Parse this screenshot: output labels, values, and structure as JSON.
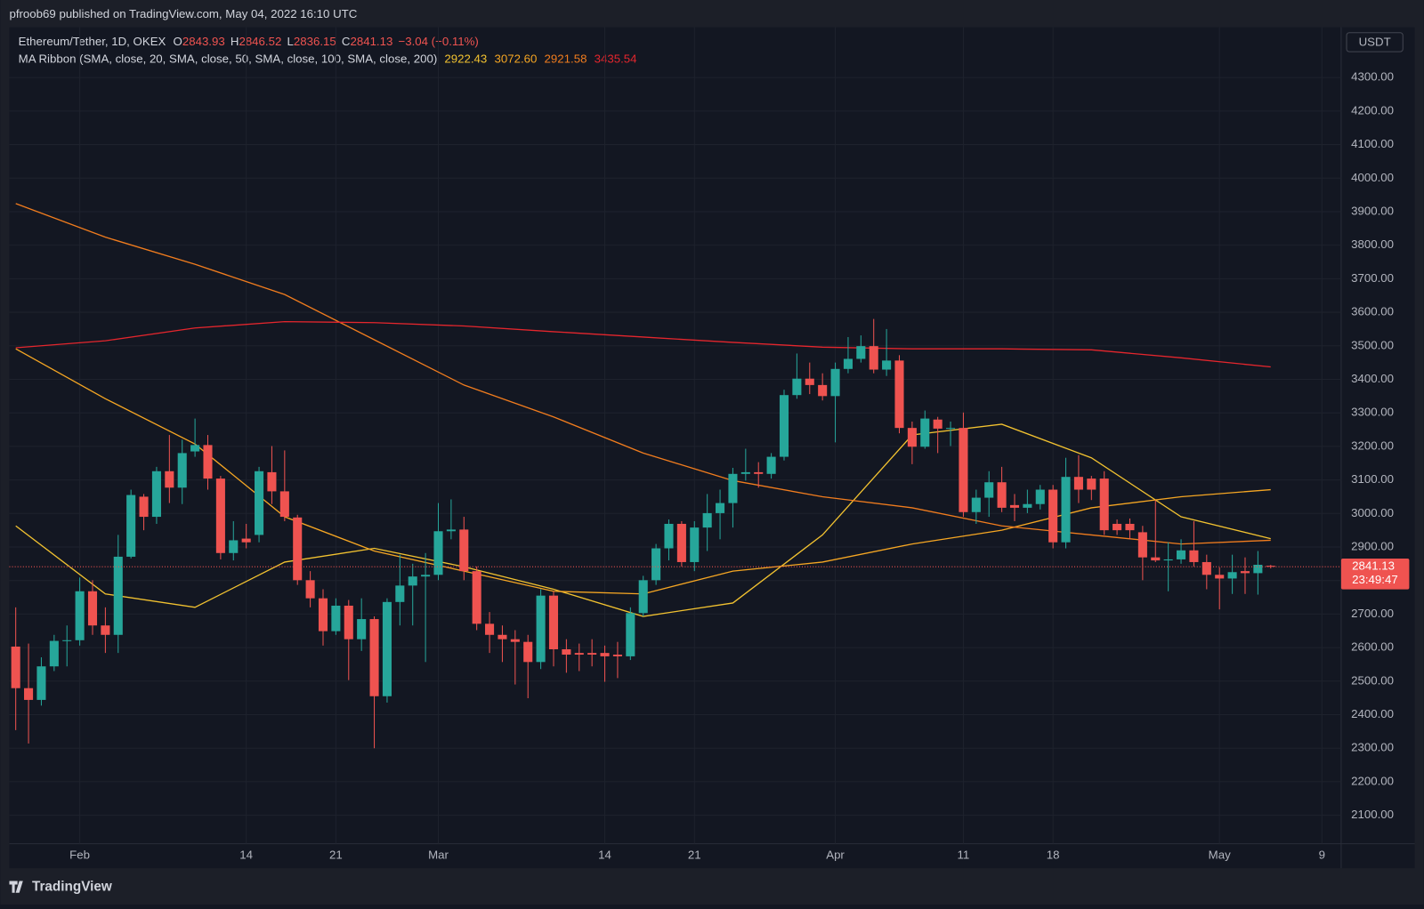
{
  "header": {
    "publisher": "pfroob69 published on TradingView.com, May 04, 2022 16:10 UTC",
    "symbol": "Ethereum/Tether, 1D, OKEX",
    "ohlc_labels": [
      "O",
      "H",
      "L",
      "C"
    ],
    "change": "−3.04 (−0.11%)",
    "indicator": "MA Ribbon (SMA, close, 20, SMA, close, 50, SMA, close, 100, SMA, close, 200)",
    "currency": "USDT",
    "countdown": "23:49:47"
  },
  "footer": {
    "brand": "TradingView"
  },
  "chart_data": {
    "type": "candlestick",
    "up_color": "#26a69a",
    "down_color": "#ef5350",
    "grid": true,
    "xlim": [
      -0.5,
      103.5
    ],
    "ylim": [
      2015,
      4450
    ],
    "xticks": [
      {
        "value": 5,
        "label": "Feb"
      },
      {
        "value": 18,
        "label": "14"
      },
      {
        "value": 25,
        "label": "21"
      },
      {
        "value": 33,
        "label": "Mar"
      },
      {
        "value": 46,
        "label": "14"
      },
      {
        "value": 53,
        "label": "21"
      },
      {
        "value": 64,
        "label": "Apr"
      },
      {
        "value": 74,
        "label": "11"
      },
      {
        "value": 81,
        "label": "18"
      },
      {
        "value": 94,
        "label": "May"
      },
      {
        "value": 102,
        "label": "9"
      }
    ],
    "yticks": [
      {
        "value": 2100,
        "label": "2100.00"
      },
      {
        "value": 2200,
        "label": "2200.00"
      },
      {
        "value": 2300,
        "label": "2300.00"
      },
      {
        "value": 2400,
        "label": "2400.00"
      },
      {
        "value": 2500,
        "label": "2500.00"
      },
      {
        "value": 2600,
        "label": "2600.00"
      },
      {
        "value": 2700,
        "label": "2700.00"
      },
      {
        "value": 2800,
        "label": "2800.00"
      },
      {
        "value": 2900,
        "label": "2900.00"
      },
      {
        "value": 3000,
        "label": "3000.00"
      },
      {
        "value": 3100,
        "label": "3100.00"
      },
      {
        "value": 3200,
        "label": "3200.00"
      },
      {
        "value": 3300,
        "label": "3300.00"
      },
      {
        "value": 3400,
        "label": "3400.00"
      },
      {
        "value": 3500,
        "label": "3500.00"
      },
      {
        "value": 3600,
        "label": "3600.00"
      },
      {
        "value": 3700,
        "label": "3700.00"
      },
      {
        "value": 3800,
        "label": "3800.00"
      },
      {
        "value": 3900,
        "label": "3900.00"
      },
      {
        "value": 4000,
        "label": "4000.00"
      },
      {
        "value": 4100,
        "label": "4100.00"
      },
      {
        "value": 4200,
        "label": "4200.00"
      },
      {
        "value": 4300,
        "label": "4300.00"
      }
    ],
    "open": [
      2603,
      2479,
      2444,
      2544,
      2620,
      2622,
      2768,
      2666,
      2638,
      2871,
      3050,
      2990,
      3126,
      3077,
      3185,
      3204,
      3104,
      2882,
      2925,
      2936,
      3123,
      3066,
      2988,
      2801,
      2747,
      2649,
      2725,
      2625,
      2685,
      2455,
      2736,
      2785,
      2812,
      2817,
      2947,
      2952,
      2828,
      2671,
      2638,
      2625,
      2617,
      2557,
      2755,
      2595,
      2584,
      2584,
      2584,
      2579,
      2574,
      2703,
      2801,
      2896,
      2969,
      2855,
      2958,
      3001,
      3031,
      3118,
      3123,
      3118,
      3169,
      3353,
      3402,
      3383,
      3350,
      3431,
      3461,
      3499,
      3429,
      3456,
      3255,
      3199,
      3280,
      3253,
      3255,
      3004,
      3047,
      3093,
      3025,
      3017,
      3028,
      3071,
      2914,
      3109,
      3104,
      3104,
      2969,
      2969,
      2944,
      2869,
      2860,
      2863,
      2890,
      2855,
      2817,
      2806,
      2828,
      2822,
      2843.93
    ],
    "high": [
      2720,
      2612,
      2571,
      2638,
      2666,
      2809,
      2801,
      2720,
      2936,
      3071,
      3058,
      3139,
      3234,
      3220,
      3283,
      3234,
      3112,
      2977,
      2969,
      3139,
      3201,
      3188,
      2996,
      2828,
      2774,
      2747,
      2742,
      2747,
      2693,
      2747,
      2877,
      2850,
      2882,
      3031,
      3042,
      2990,
      2842,
      2706,
      2666,
      2652,
      2638,
      2774,
      2768,
      2625,
      2612,
      2625,
      2606,
      2617,
      2720,
      2814,
      2909,
      2982,
      2977,
      2977,
      3058,
      3071,
      3136,
      3193,
      3153,
      3180,
      3369,
      3477,
      3450,
      3418,
      3450,
      3526,
      3531,
      3580,
      3550,
      3472,
      3274,
      3307,
      3288,
      3274,
      3301,
      3071,
      3126,
      3139,
      3058,
      3071,
      3085,
      3085,
      3166,
      3174,
      3112,
      3126,
      2982,
      2985,
      2963,
      3039,
      2914,
      2923,
      2977,
      2877,
      2839,
      2877,
      2869,
      2888,
      2846.52
    ],
    "low": [
      2354,
      2314,
      2427,
      2530,
      2544,
      2606,
      2638,
      2584,
      2584,
      2866,
      2950,
      2969,
      3031,
      3028,
      3169,
      3071,
      2863,
      2860,
      2896,
      2914,
      3028,
      2977,
      2787,
      2720,
      2606,
      2638,
      2503,
      2590,
      2300,
      2436,
      2666,
      2666,
      2557,
      2801,
      2923,
      2801,
      2652,
      2584,
      2557,
      2490,
      2449,
      2536,
      2544,
      2525,
      2530,
      2544,
      2498,
      2509,
      2563,
      2693,
      2787,
      2860,
      2842,
      2828,
      2888,
      2923,
      2958,
      3098,
      3077,
      3104,
      3158,
      3342,
      3356,
      3337,
      3212,
      3418,
      3450,
      3418,
      3410,
      3239,
      3147,
      3193,
      3180,
      3201,
      2990,
      2969,
      2990,
      3004,
      2977,
      3001,
      3012,
      2896,
      2896,
      3031,
      3040,
      2936,
      2936,
      2923,
      2801,
      2855,
      2768,
      2850,
      2842,
      2774,
      2714,
      2760,
      2760,
      2758,
      2836.15
    ],
    "close": [
      2479,
      2444,
      2544,
      2620,
      2622,
      2768,
      2666,
      2638,
      2871,
      3055,
      2990,
      3126,
      3077,
      3180,
      3204,
      3104,
      2882,
      2920,
      2914,
      3126,
      3066,
      2990,
      2801,
      2747,
      2649,
      2725,
      2625,
      2685,
      2455,
      2736,
      2785,
      2812,
      2817,
      2947,
      2952,
      2828,
      2671,
      2638,
      2625,
      2617,
      2557,
      2755,
      2595,
      2579,
      2579,
      2579,
      2574,
      2574,
      2703,
      2801,
      2896,
      2969,
      2855,
      2958,
      3001,
      3031,
      3118,
      3123,
      3118,
      3169,
      3353,
      3402,
      3383,
      3350,
      3431,
      3461,
      3499,
      3429,
      3456,
      3255,
      3199,
      3283,
      3253,
      3255,
      3004,
      3047,
      3093,
      3017,
      3017,
      3028,
      3071,
      2914,
      3109,
      3071,
      3071,
      2950,
      2950,
      2950,
      2869,
      2860,
      2863,
      2890,
      2855,
      2817,
      2806,
      2825,
      2822,
      2847,
      2841.13
    ],
    "ma_x": [
      0,
      7,
      14,
      21,
      28,
      35,
      42,
      49,
      56,
      63,
      70,
      77,
      84,
      91,
      98
    ],
    "series": [
      {
        "color": "#f2c230",
        "legend_value": "2922.43",
        "values": [
          2963,
          2760,
          2720,
          2855,
          2896,
          2841,
          2774,
          2693,
          2733,
          2936,
          3234,
          3266,
          3166,
          2990,
          2925
        ]
      },
      {
        "color": "#f5a623",
        "legend_value": "3072.60",
        "values": [
          3491,
          3342,
          3207,
          2990,
          2888,
          2828,
          2768,
          2760,
          2828,
          2855,
          2909,
          2950,
          3017,
          3050,
          3071
        ]
      },
      {
        "color": "#f07c1e",
        "legend_value": "2921.58",
        "values": [
          3924,
          3824,
          3743,
          3653,
          3518,
          3383,
          3288,
          3180,
          3098,
          3050,
          3017,
          2963,
          2936,
          2909,
          2920
        ]
      },
      {
        "color": "#e4262d",
        "legend_value": "3435.54",
        "values": [
          3494,
          3515,
          3553,
          3572,
          3569,
          3559,
          3542,
          3526,
          3510,
          3496,
          3491,
          3491,
          3488,
          3464,
          3437
        ]
      }
    ]
  }
}
